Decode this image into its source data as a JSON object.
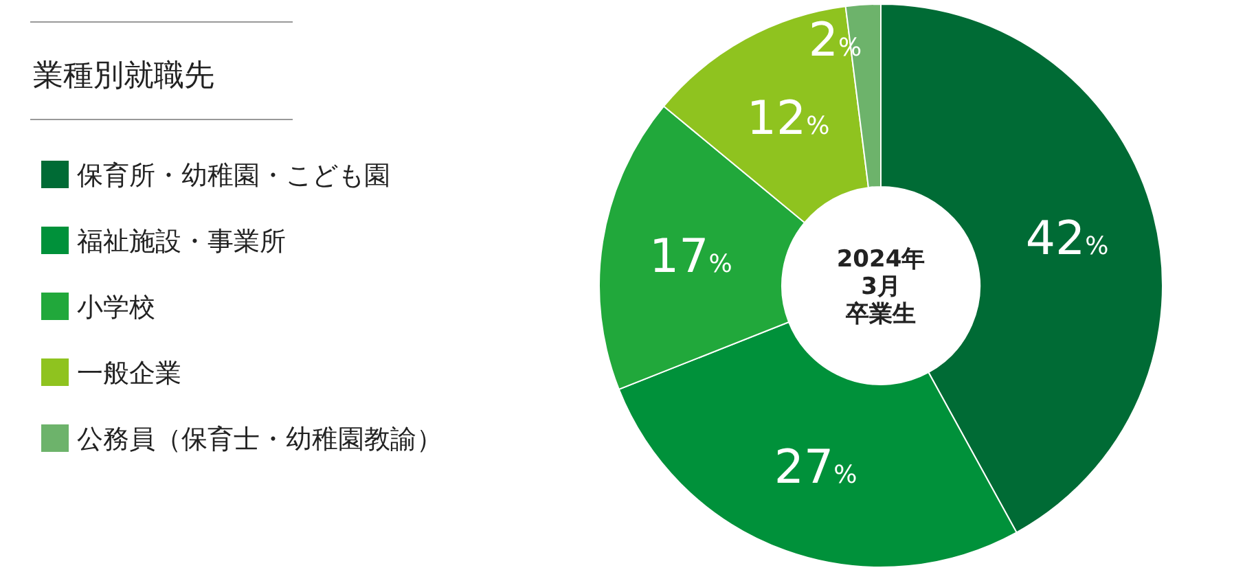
{
  "chart_data": {
    "type": "donut",
    "title": "業種別就職先",
    "categories": [
      "保育所・幼稚園・こども園",
      "福祉施設・事業所",
      "小学校",
      "一般企業",
      "公務員（保育士・幼稚園教諭）"
    ],
    "values": [
      42,
      27,
      17,
      12,
      2
    ],
    "colors": [
      "#006b35",
      "#00913a",
      "#21a83b",
      "#8fc31f",
      "#6db36b"
    ],
    "value_labels": [
      "42%",
      "27%",
      "17%",
      "12%",
      "2%"
    ],
    "annotations": [
      "2024年",
      "3月",
      "卒業生"
    ],
    "legend": "left"
  }
}
